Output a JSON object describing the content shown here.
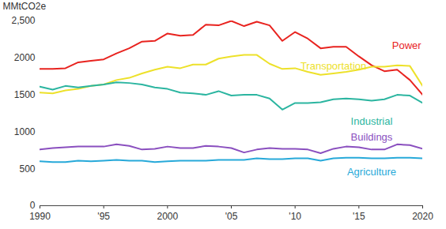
{
  "chart_data": {
    "type": "line",
    "y_label": "MMtCO2e",
    "x": [
      1990,
      1991,
      1992,
      1993,
      1994,
      1995,
      1996,
      1997,
      1998,
      1999,
      2000,
      2001,
      2002,
      2003,
      2004,
      2005,
      2006,
      2007,
      2008,
      2009,
      2010,
      2011,
      2012,
      2013,
      2014,
      2015,
      2016,
      2017,
      2018,
      2019,
      2020
    ],
    "series": [
      {
        "name": "Power",
        "color": "#e8231f",
        "values": [
          1850,
          1850,
          1860,
          1940,
          1960,
          1980,
          2060,
          2130,
          2220,
          2230,
          2330,
          2300,
          2310,
          2450,
          2440,
          2500,
          2430,
          2490,
          2440,
          2230,
          2350,
          2260,
          2130,
          2150,
          2150,
          2020,
          1900,
          1820,
          1840,
          1700,
          1500
        ]
      },
      {
        "name": "Transportation",
        "color": "#ede12a",
        "values": [
          1530,
          1520,
          1560,
          1580,
          1620,
          1640,
          1700,
          1730,
          1790,
          1840,
          1880,
          1860,
          1910,
          1910,
          1990,
          2020,
          2040,
          2040,
          1920,
          1850,
          1860,
          1810,
          1770,
          1790,
          1810,
          1840,
          1880,
          1880,
          1900,
          1890,
          1620
        ]
      },
      {
        "name": "Industrial",
        "color": "#2bb5a0",
        "values": [
          1610,
          1570,
          1620,
          1600,
          1620,
          1640,
          1670,
          1660,
          1640,
          1600,
          1580,
          1530,
          1520,
          1500,
          1550,
          1490,
          1500,
          1500,
          1450,
          1300,
          1390,
          1390,
          1400,
          1440,
          1450,
          1440,
          1420,
          1440,
          1500,
          1490,
          1390
        ]
      },
      {
        "name": "Buildings",
        "color": "#8a4fbf",
        "values": [
          760,
          780,
          790,
          800,
          800,
          800,
          830,
          810,
          760,
          770,
          800,
          780,
          780,
          810,
          800,
          780,
          720,
          760,
          780,
          770,
          770,
          760,
          710,
          770,
          800,
          790,
          760,
          760,
          830,
          820,
          770
        ]
      },
      {
        "name": "Agriculture",
        "color": "#27a9d9",
        "values": [
          600,
          590,
          590,
          610,
          600,
          610,
          620,
          610,
          610,
          590,
          600,
          610,
          610,
          610,
          620,
          620,
          620,
          640,
          630,
          630,
          640,
          640,
          610,
          640,
          650,
          650,
          640,
          640,
          650,
          650,
          640
        ]
      }
    ],
    "xlim": [
      1990,
      2020
    ],
    "xticks": [
      1990,
      {
        "value": 1995,
        "label": "'95"
      },
      2000,
      {
        "value": 2005,
        "label": "'05"
      },
      {
        "value": 2010,
        "label": "'10"
      },
      {
        "value": 2015,
        "label": "'15"
      },
      2020
    ],
    "ylim": [
      0,
      2500
    ],
    "yticks": [
      0,
      500,
      1000,
      1500,
      2000,
      {
        "value": 2500,
        "label": "2,500"
      }
    ],
    "grid": false
  }
}
